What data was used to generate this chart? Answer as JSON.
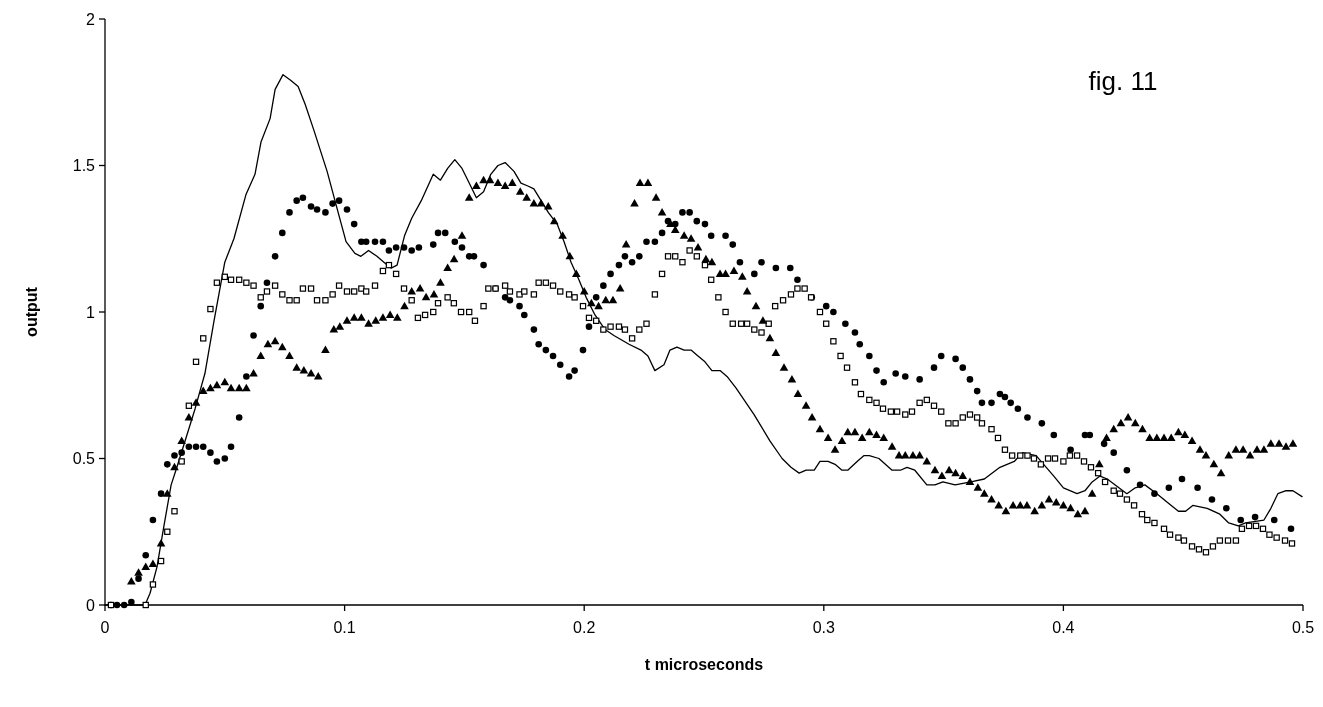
{
  "chart_data": {
    "type": "scatter",
    "title": "fig. 11",
    "xlabel": "t microseconds",
    "ylabel": "output",
    "xlim": [
      0,
      0.5
    ],
    "ylim": [
      0,
      2
    ],
    "xticks": [
      0,
      0.1,
      0.2,
      0.3,
      0.4,
      0.5
    ],
    "yticks": [
      0,
      0.5,
      1,
      1.5,
      2
    ],
    "grid": false,
    "series": [
      {
        "type": "line",
        "color": "#000000",
        "marker": "none",
        "line_style": "solid",
        "x": [
          0,
          0.0167,
          0.0188,
          0.0217,
          0.0246,
          0.0276,
          0.03,
          0.0338,
          0.0376,
          0.0417,
          0.0455,
          0.05,
          0.0538,
          0.0588,
          0.0626,
          0.0651,
          0.0689,
          0.071,
          0.0743,
          0.0776,
          0.0806,
          0.0835,
          0.0872,
          0.0927,
          0.0973,
          0.1006,
          0.1043,
          0.1068,
          0.11,
          0.1135,
          0.1164,
          0.1194,
          0.1219,
          0.125,
          0.128,
          0.132,
          0.137,
          0.14,
          0.143,
          0.146,
          0.149,
          0.152,
          0.155,
          0.158,
          0.161,
          0.164,
          0.167,
          0.1707,
          0.1736,
          0.1765,
          0.179,
          0.182,
          0.185,
          0.1887,
          0.1916,
          0.1945,
          0.1978,
          0.2008,
          0.2045,
          0.2087,
          0.2124,
          0.2187,
          0.2237,
          0.2266,
          0.2295,
          0.2333,
          0.2358,
          0.2387,
          0.2417,
          0.2446,
          0.2475,
          0.2504,
          0.2533,
          0.2567,
          0.2596,
          0.2634,
          0.2709,
          0.2775,
          0.2826,
          0.2863,
          0.2897,
          0.2926,
          0.296,
          0.2984,
          0.3018,
          0.3047,
          0.3076,
          0.31,
          0.3139,
          0.3168,
          0.319,
          0.323,
          0.3285,
          0.332,
          0.3347,
          0.338,
          0.343,
          0.3464,
          0.3497,
          0.3548,
          0.3614,
          0.367,
          0.3735,
          0.3795,
          0.383,
          0.3886,
          0.396,
          0.4,
          0.4057,
          0.409,
          0.412,
          0.4153,
          0.4183,
          0.4265,
          0.43,
          0.434,
          0.439,
          0.445,
          0.448,
          0.451,
          0.454,
          0.46,
          0.4653,
          0.469,
          0.473,
          0.476,
          0.4837,
          0.4866,
          0.4895,
          0.4929,
          0.4958,
          0.4996
        ],
        "values": [
          0,
          0,
          0.04,
          0.13,
          0.27,
          0.41,
          0.47,
          0.57,
          0.67,
          0.79,
          0.97,
          1.17,
          1.25,
          1.4,
          1.47,
          1.58,
          1.66,
          1.76,
          1.81,
          1.79,
          1.77,
          1.71,
          1.62,
          1.48,
          1.34,
          1.24,
          1.2,
          1.19,
          1.21,
          1.19,
          1.17,
          1.15,
          1.16,
          1.26,
          1.32,
          1.38,
          1.47,
          1.45,
          1.49,
          1.52,
          1.49,
          1.44,
          1.39,
          1.41,
          1.47,
          1.5,
          1.51,
          1.48,
          1.44,
          1.43,
          1.42,
          1.38,
          1.34,
          1.3,
          1.24,
          1.17,
          1.11,
          1.05,
          0.99,
          0.94,
          0.92,
          0.89,
          0.87,
          0.85,
          0.8,
          0.82,
          0.87,
          0.88,
          0.87,
          0.87,
          0.85,
          0.83,
          0.8,
          0.8,
          0.78,
          0.74,
          0.65,
          0.56,
          0.5,
          0.47,
          0.45,
          0.46,
          0.46,
          0.49,
          0.49,
          0.48,
          0.46,
          0.46,
          0.49,
          0.51,
          0.51,
          0.5,
          0.46,
          0.46,
          0.47,
          0.46,
          0.41,
          0.41,
          0.42,
          0.41,
          0.42,
          0.43,
          0.47,
          0.49,
          0.52,
          0.51,
          0.44,
          0.4,
          0.38,
          0.39,
          0.42,
          0.44,
          0.43,
          0.38,
          0.4,
          0.41,
          0.38,
          0.34,
          0.32,
          0.32,
          0.34,
          0.33,
          0.31,
          0.28,
          0.27,
          0.28,
          0.29,
          0.33,
          0.38,
          0.39,
          0.39,
          0.37
        ]
      },
      {
        "color": "#000000",
        "marker": "circle",
        "x": [
          0.0025,
          0.005,
          0.008,
          0.011,
          0.014,
          0.017,
          0.02,
          0.0234,
          0.026,
          0.029,
          0.032,
          0.035,
          0.038,
          0.041,
          0.044,
          0.0467,
          0.05,
          0.0526,
          0.056,
          0.059,
          0.062,
          0.065,
          0.0676,
          0.071,
          0.074,
          0.077,
          0.08,
          0.0826,
          0.086,
          0.0885,
          0.092,
          0.095,
          0.0977,
          0.101,
          0.104,
          0.107,
          0.109,
          0.1127,
          0.116,
          0.1185,
          0.1215,
          0.1248,
          0.128,
          0.131,
          0.137,
          0.139,
          0.142,
          0.146,
          0.149,
          0.152,
          0.154,
          0.158,
          0.163,
          0.167,
          0.169,
          0.173,
          0.175,
          0.179,
          0.181,
          0.184,
          0.187,
          0.19,
          0.1937,
          0.196,
          0.1995,
          0.202,
          0.205,
          0.208,
          0.211,
          0.2145,
          0.217,
          0.22,
          0.223,
          0.226,
          0.2295,
          0.2325,
          0.235,
          0.238,
          0.241,
          0.244,
          0.247,
          0.2504,
          0.253,
          0.259,
          0.262,
          0.265,
          0.271,
          0.274,
          0.28,
          0.286,
          0.289,
          0.295,
          0.301,
          0.304,
          0.309,
          0.313,
          0.315,
          0.319,
          0.322,
          0.325,
          0.33,
          0.334,
          0.34,
          0.346,
          0.349,
          0.355,
          0.358,
          0.361,
          0.364,
          0.366,
          0.37,
          0.3735,
          0.3756,
          0.378,
          0.381,
          0.385,
          0.391,
          0.396,
          0.403,
          0.409,
          0.411,
          0.417,
          0.421,
          0.4265,
          0.432,
          0.438,
          0.444,
          0.4495,
          0.456,
          0.462,
          0.468,
          0.474,
          0.48,
          0.488,
          0.495
        ],
        "values": [
          0,
          0,
          0,
          0.01,
          0.09,
          0.17,
          0.29,
          0.38,
          0.48,
          0.51,
          0.52,
          0.54,
          0.54,
          0.54,
          0.52,
          0.49,
          0.5,
          0.54,
          0.64,
          0.78,
          0.92,
          1.02,
          1.1,
          1.19,
          1.27,
          1.34,
          1.38,
          1.39,
          1.36,
          1.35,
          1.34,
          1.37,
          1.38,
          1.35,
          1.3,
          1.24,
          1.24,
          1.24,
          1.24,
          1.21,
          1.22,
          1.22,
          1.21,
          1.22,
          1.23,
          1.27,
          1.27,
          1.24,
          1.22,
          1.19,
          1.19,
          1.16,
          1.08,
          1.05,
          1.04,
          1.02,
          0.99,
          0.94,
          0.89,
          0.87,
          0.85,
          0.82,
          0.78,
          0.8,
          0.87,
          0.95,
          1.05,
          1.09,
          1.13,
          1.16,
          1.19,
          1.17,
          1.19,
          1.24,
          1.24,
          1.27,
          1.31,
          1.3,
          1.34,
          1.34,
          1.31,
          1.3,
          1.26,
          1.26,
          1.23,
          1.17,
          1.13,
          1.17,
          1.15,
          1.15,
          1.11,
          1.05,
          1.02,
          1.0,
          0.96,
          0.93,
          0.89,
          0.85,
          0.8,
          0.76,
          0.79,
          0.78,
          0.77,
          0.81,
          0.85,
          0.84,
          0.81,
          0.77,
          0.73,
          0.69,
          0.69,
          0.72,
          0.71,
          0.69,
          0.67,
          0.64,
          0.62,
          0.58,
          0.53,
          0.58,
          0.58,
          0.55,
          0.52,
          0.46,
          0.41,
          0.38,
          0.4,
          0.43,
          0.4,
          0.36,
          0.33,
          0.29,
          0.3,
          0.29,
          0.26
        ]
      },
      {
        "color": "#000000",
        "marker": "square",
        "x": [
          0.0025,
          0.017,
          0.02,
          0.0234,
          0.026,
          0.029,
          0.032,
          0.035,
          0.038,
          0.041,
          0.044,
          0.0467,
          0.05,
          0.0526,
          0.056,
          0.059,
          0.062,
          0.065,
          0.0676,
          0.071,
          0.074,
          0.077,
          0.08,
          0.0826,
          0.086,
          0.0885,
          0.092,
          0.095,
          0.0977,
          0.101,
          0.104,
          0.107,
          0.109,
          0.1127,
          0.116,
          0.1185,
          0.1215,
          0.1248,
          0.128,
          0.1306,
          0.1336,
          0.137,
          0.139,
          0.143,
          0.1456,
          0.1486,
          0.152,
          0.1544,
          0.158,
          0.16,
          0.163,
          0.167,
          0.169,
          0.173,
          0.175,
          0.179,
          0.181,
          0.184,
          0.187,
          0.19,
          0.1937,
          0.196,
          0.1995,
          0.202,
          0.205,
          0.208,
          0.211,
          0.2145,
          0.217,
          0.22,
          0.223,
          0.226,
          0.2295,
          0.2325,
          0.235,
          0.238,
          0.241,
          0.244,
          0.247,
          0.2504,
          0.253,
          0.256,
          0.259,
          0.262,
          0.2655,
          0.268,
          0.271,
          0.274,
          0.277,
          0.2797,
          0.283,
          0.2863,
          0.289,
          0.292,
          0.2947,
          0.2984,
          0.301,
          0.304,
          0.307,
          0.3097,
          0.313,
          0.3155,
          0.319,
          0.322,
          0.3247,
          0.328,
          0.3306,
          0.334,
          0.3368,
          0.34,
          0.343,
          0.346,
          0.349,
          0.352,
          0.355,
          0.358,
          0.361,
          0.364,
          0.366,
          0.37,
          0.3727,
          0.3756,
          0.3786,
          0.382,
          0.385,
          0.3877,
          0.3906,
          0.3936,
          0.3965,
          0.4,
          0.4027,
          0.4057,
          0.4086,
          0.4115,
          0.4145,
          0.4174,
          0.421,
          0.4236,
          0.4265,
          0.4295,
          0.4328,
          0.435,
          0.438,
          0.442,
          0.4445,
          0.448,
          0.4503,
          0.4537,
          0.4566,
          0.4595,
          0.4624,
          0.4653,
          0.4687,
          0.472,
          0.4745,
          0.4775,
          0.4804,
          0.4833,
          0.486,
          0.489,
          0.4925,
          0.4954
        ],
        "values": [
          0,
          0,
          0.07,
          0.15,
          0.25,
          0.32,
          0.49,
          0.68,
          0.83,
          0.91,
          1.01,
          1.1,
          1.12,
          1.11,
          1.11,
          1.1,
          1.09,
          1.05,
          1.07,
          1.09,
          1.06,
          1.04,
          1.04,
          1.08,
          1.08,
          1.04,
          1.04,
          1.06,
          1.09,
          1.07,
          1.07,
          1.08,
          1.07,
          1.09,
          1.14,
          1.16,
          1.13,
          1.08,
          1.04,
          0.98,
          0.99,
          1.0,
          1.03,
          1.05,
          1.03,
          1.0,
          1.0,
          0.97,
          1.02,
          1.08,
          1.08,
          1.09,
          1.07,
          1.06,
          1.07,
          1.06,
          1.1,
          1.1,
          1.09,
          1.07,
          1.06,
          1.05,
          1.02,
          0.98,
          0.97,
          0.94,
          0.95,
          0.95,
          0.94,
          0.91,
          0.94,
          0.96,
          1.06,
          1.13,
          1.19,
          1.19,
          1.17,
          1.21,
          1.19,
          1.16,
          1.11,
          1.05,
          1.0,
          0.96,
          0.96,
          0.96,
          0.94,
          0.93,
          0.96,
          1.02,
          1.04,
          1.06,
          1.08,
          1.08,
          1.05,
          1.0,
          0.96,
          0.9,
          0.85,
          0.81,
          0.76,
          0.72,
          0.7,
          0.69,
          0.67,
          0.66,
          0.66,
          0.65,
          0.66,
          0.69,
          0.7,
          0.68,
          0.66,
          0.62,
          0.62,
          0.64,
          0.65,
          0.64,
          0.62,
          0.6,
          0.57,
          0.53,
          0.51,
          0.51,
          0.51,
          0.5,
          0.48,
          0.5,
          0.5,
          0.49,
          0.51,
          0.51,
          0.49,
          0.47,
          0.45,
          0.42,
          0.39,
          0.38,
          0.36,
          0.34,
          0.31,
          0.29,
          0.28,
          0.26,
          0.24,
          0.23,
          0.22,
          0.2,
          0.19,
          0.18,
          0.2,
          0.22,
          0.22,
          0.22,
          0.26,
          0.27,
          0.27,
          0.26,
          0.24,
          0.23,
          0.22,
          0.21
        ]
      },
      {
        "color": "#000000",
        "marker": "triangle",
        "x": [
          0.011,
          0.014,
          0.017,
          0.02,
          0.0234,
          0.026,
          0.029,
          0.032,
          0.035,
          0.038,
          0.041,
          0.044,
          0.0467,
          0.05,
          0.0526,
          0.056,
          0.059,
          0.062,
          0.065,
          0.068,
          0.071,
          0.074,
          0.077,
          0.08,
          0.083,
          0.086,
          0.089,
          0.092,
          0.0955,
          0.098,
          0.101,
          0.104,
          0.107,
          0.11,
          0.113,
          0.116,
          0.119,
          0.122,
          0.125,
          0.128,
          0.1315,
          0.134,
          0.1373,
          0.14,
          0.143,
          0.1457,
          0.149,
          0.152,
          0.155,
          0.158,
          0.1607,
          0.164,
          0.167,
          0.17,
          0.1733,
          0.176,
          0.179,
          0.182,
          0.185,
          0.1875,
          0.191,
          0.194,
          0.1967,
          0.2,
          0.203,
          0.206,
          0.209,
          0.212,
          0.215,
          0.2175,
          0.221,
          0.2233,
          0.2266,
          0.23,
          0.2325,
          0.236,
          0.238,
          0.2417,
          0.2446,
          0.2475,
          0.2508,
          0.2533,
          0.2567,
          0.259,
          0.2625,
          0.266,
          0.268,
          0.2717,
          0.2746,
          0.2775,
          0.28,
          0.2834,
          0.2867,
          0.2892,
          0.2926,
          0.2951,
          0.2984,
          0.3018,
          0.3047,
          0.3076,
          0.31,
          0.313,
          0.316,
          0.319,
          0.322,
          0.325,
          0.3285,
          0.3314,
          0.334,
          0.3372,
          0.34,
          0.343,
          0.3464,
          0.3493,
          0.3523,
          0.355,
          0.358,
          0.361,
          0.3643,
          0.367,
          0.37,
          0.373,
          0.376,
          0.379,
          0.382,
          0.3848,
          0.388,
          0.391,
          0.394,
          0.397,
          0.4,
          0.403,
          0.406,
          0.409,
          0.412,
          0.415,
          0.418,
          0.421,
          0.424,
          0.427,
          0.43,
          0.433,
          0.436,
          0.439,
          0.442,
          0.445,
          0.448,
          0.4507,
          0.4537,
          0.457,
          0.4595,
          0.4628,
          0.4658,
          0.469,
          0.472,
          0.475,
          0.4779,
          0.4808,
          0.4837,
          0.4866,
          0.49,
          0.4929,
          0.4958
        ],
        "values": [
          0.08,
          0.11,
          0.13,
          0.14,
          0.21,
          0.38,
          0.47,
          0.56,
          0.64,
          0.69,
          0.73,
          0.74,
          0.75,
          0.76,
          0.74,
          0.74,
          0.74,
          0.79,
          0.85,
          0.89,
          0.9,
          0.88,
          0.85,
          0.81,
          0.8,
          0.79,
          0.78,
          0.87,
          0.94,
          0.95,
          0.97,
          0.98,
          0.98,
          0.96,
          0.97,
          0.98,
          0.99,
          0.98,
          1.02,
          1.07,
          1.08,
          1.05,
          1.06,
          1.1,
          1.15,
          1.18,
          1.26,
          1.39,
          1.43,
          1.45,
          1.45,
          1.44,
          1.43,
          1.44,
          1.41,
          1.39,
          1.37,
          1.37,
          1.36,
          1.31,
          1.26,
          1.19,
          1.13,
          1.07,
          1.03,
          1.02,
          1.04,
          1.04,
          1.08,
          1.23,
          1.37,
          1.44,
          1.44,
          1.39,
          1.34,
          1.3,
          1.28,
          1.26,
          1.25,
          1.22,
          1.18,
          1.17,
          1.13,
          1.13,
          1.14,
          1.12,
          1.07,
          1.02,
          0.97,
          0.91,
          0.86,
          0.81,
          0.77,
          0.72,
          0.68,
          0.64,
          0.6,
          0.57,
          0.53,
          0.56,
          0.59,
          0.59,
          0.57,
          0.59,
          0.58,
          0.57,
          0.54,
          0.51,
          0.51,
          0.51,
          0.51,
          0.49,
          0.46,
          0.44,
          0.46,
          0.45,
          0.44,
          0.42,
          0.4,
          0.38,
          0.36,
          0.34,
          0.32,
          0.34,
          0.34,
          0.34,
          0.32,
          0.34,
          0.36,
          0.35,
          0.34,
          0.33,
          0.31,
          0.32,
          0.38,
          0.48,
          0.57,
          0.6,
          0.62,
          0.64,
          0.62,
          0.6,
          0.57,
          0.57,
          0.57,
          0.57,
          0.59,
          0.58,
          0.56,
          0.53,
          0.51,
          0.48,
          0.45,
          0.51,
          0.53,
          0.53,
          0.51,
          0.53,
          0.53,
          0.55,
          0.55,
          0.54,
          0.55
        ]
      }
    ]
  }
}
